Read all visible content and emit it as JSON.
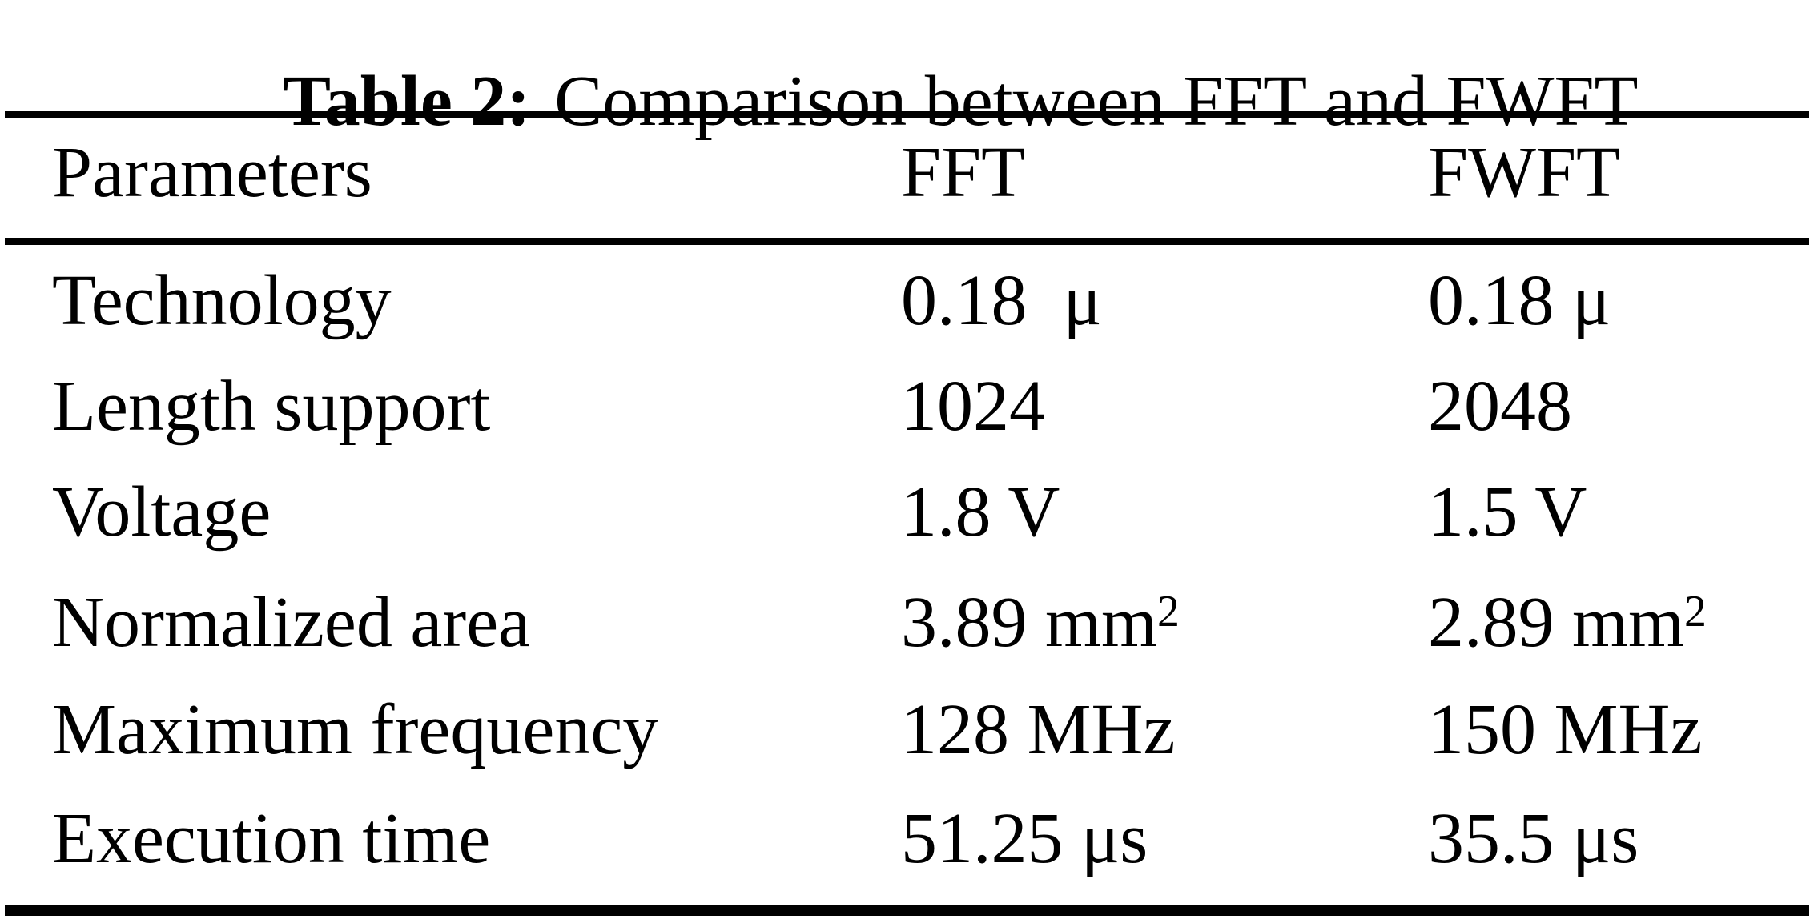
{
  "title": {
    "label": "Table 2:",
    "text": "Comparison between FFT and FWFT"
  },
  "table": {
    "columns": [
      "Parameters",
      "FFT",
      "FWFT"
    ],
    "rows": [
      {
        "param": "Technology",
        "fft": "0.18  μ",
        "fwft": "0.18 μ"
      },
      {
        "param": "Length support",
        "fft": "1024",
        "fwft": "2048"
      },
      {
        "param": "Voltage",
        "fft": "1.8 V",
        "fwft": "1.5 V"
      },
      {
        "param": "Normalized area",
        "fft": "3.89 mm",
        "fft_sup": "2",
        "fwft": "2.89 mm",
        "fwft_sup": "2"
      },
      {
        "param": "Maximum frequency",
        "fft": "128 MHz",
        "fwft": "150 MHz"
      },
      {
        "param": "Execution time",
        "fft": "51.25 μs",
        "fwft": "35.5 μs"
      }
    ]
  }
}
